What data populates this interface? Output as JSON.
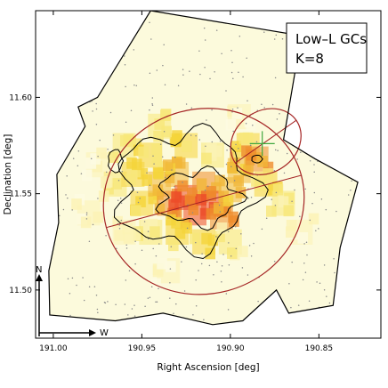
{
  "chart_data": {
    "type": "heatmap",
    "title": "",
    "legend": {
      "lines": [
        "Low–L GCs",
        "K=8"
      ],
      "placement": "top-right"
    },
    "xlabel": "Right Ascension [deg]",
    "ylabel": "Declination [deg]",
    "x_axis": {
      "reversed": true,
      "range": [
        191.01,
        190.815
      ],
      "ticks": [
        191.0,
        190.95,
        190.9,
        190.85
      ],
      "tick_labels": [
        "191.00",
        "190.95",
        "190.90",
        "190.85"
      ]
    },
    "y_axis": {
      "range": [
        11.475,
        11.645
      ],
      "ticks": [
        11.5,
        11.55,
        11.6
      ],
      "tick_labels": [
        "11.50",
        "11.55",
        "11.60"
      ]
    },
    "compass": {
      "north": "N",
      "west": "W"
    },
    "colors": {
      "density_scale": [
        "#fdfbe2",
        "#fbf3b4",
        "#f8e779",
        "#f5d43b",
        "#f1b638",
        "#ef8c2c",
        "#ec4b28"
      ],
      "ellipse": "#a52525",
      "cross": "#3fa83f",
      "contour": "#000000",
      "points": "#8a8a8a"
    },
    "footprint_polygon_deg": [
      [
        190.945,
        11.645
      ],
      [
        190.86,
        11.632
      ],
      [
        190.87,
        11.578
      ],
      [
        190.852,
        11.568
      ],
      [
        190.828,
        11.556
      ],
      [
        190.838,
        11.522
      ],
      [
        190.842,
        11.492
      ],
      [
        190.867,
        11.488
      ],
      [
        190.874,
        11.5
      ],
      [
        190.893,
        11.484
      ],
      [
        190.91,
        11.482
      ],
      [
        190.938,
        11.488
      ],
      [
        190.965,
        11.484
      ],
      [
        191.002,
        11.487
      ],
      [
        191.0025,
        11.51
      ],
      [
        190.997,
        11.535
      ],
      [
        190.998,
        11.56
      ],
      [
        190.982,
        11.585
      ],
      [
        190.986,
        11.595
      ],
      [
        190.975,
        11.6
      ]
    ],
    "density_cells_deg": [
      {
        "ra": 190.975,
        "dec": 11.565,
        "level": 1
      },
      {
        "ra": 190.965,
        "dec": 11.555,
        "level": 2
      },
      {
        "ra": 190.96,
        "dec": 11.575,
        "level": 2
      },
      {
        "ra": 190.955,
        "dec": 11.56,
        "level": 3
      },
      {
        "ra": 190.95,
        "dec": 11.545,
        "level": 3
      },
      {
        "ra": 190.945,
        "dec": 11.57,
        "level": 3
      },
      {
        "ra": 190.94,
        "dec": 11.555,
        "level": 4
      },
      {
        "ra": 190.935,
        "dec": 11.545,
        "level": 5
      },
      {
        "ra": 190.93,
        "dec": 11.56,
        "level": 4
      },
      {
        "ra": 190.925,
        "dec": 11.548,
        "level": 6
      },
      {
        "ra": 190.92,
        "dec": 11.54,
        "level": 6
      },
      {
        "ra": 190.915,
        "dec": 11.555,
        "level": 5
      },
      {
        "ra": 190.91,
        "dec": 11.545,
        "level": 6
      },
      {
        "ra": 190.905,
        "dec": 11.538,
        "level": 5
      },
      {
        "ra": 190.9,
        "dec": 11.552,
        "level": 4
      },
      {
        "ra": 190.895,
        "dec": 11.562,
        "level": 4
      },
      {
        "ra": 190.89,
        "dec": 11.575,
        "level": 3
      },
      {
        "ra": 190.885,
        "dec": 11.568,
        "level": 5
      },
      {
        "ra": 190.88,
        "dec": 11.555,
        "level": 3
      },
      {
        "ra": 190.915,
        "dec": 11.525,
        "level": 3
      },
      {
        "ra": 190.93,
        "dec": 11.53,
        "level": 3
      },
      {
        "ra": 190.945,
        "dec": 11.53,
        "level": 2
      },
      {
        "ra": 190.9,
        "dec": 11.525,
        "level": 2
      },
      {
        "ra": 190.96,
        "dec": 11.53,
        "level": 1
      },
      {
        "ra": 190.925,
        "dec": 11.575,
        "level": 3
      },
      {
        "ra": 190.91,
        "dec": 11.57,
        "level": 2
      },
      {
        "ra": 190.94,
        "dec": 11.585,
        "level": 2
      },
      {
        "ra": 190.87,
        "dec": 11.545,
        "level": 2
      },
      {
        "ra": 190.895,
        "dec": 11.59,
        "level": 1
      },
      {
        "ra": 190.935,
        "dec": 11.51,
        "level": 1
      },
      {
        "ra": 190.98,
        "dec": 11.54,
        "level": 1
      },
      {
        "ra": 190.86,
        "dec": 11.53,
        "level": 1
      }
    ],
    "ellipses_deg": [
      {
        "center": [
          190.915,
          11.546
        ],
        "a": 0.057,
        "b": 0.048,
        "angle_deg": 15
      },
      {
        "center": [
          190.88,
          11.577
        ],
        "a": 0.021,
        "b": 0.016,
        "angle_deg": 35
      }
    ],
    "cross_center_deg": [
      190.882,
      11.576
    ]
  }
}
